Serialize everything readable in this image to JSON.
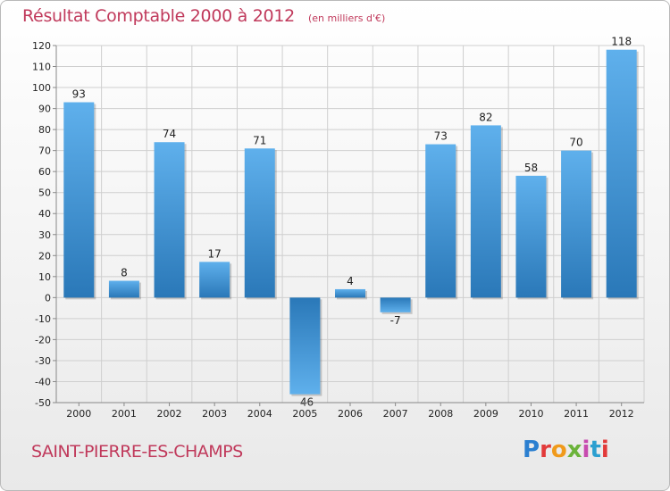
{
  "title": "Résultat Comptable 2000 à 2012",
  "unit": "(en milliers d'€)",
  "commune": "SAINT-PIERRE-ES-CHAMPS",
  "logo_letters": [
    "P",
    "r",
    "o",
    "x",
    "i",
    "t",
    "i"
  ],
  "colors": {
    "title": "#c0395b",
    "bar_dark": "#2a78b8",
    "bar_light": "#5fb0ec",
    "grid": "#cfcfcf",
    "axis_text": "#222222"
  },
  "chart_data": {
    "type": "bar",
    "categories": [
      "2000",
      "2001",
      "2002",
      "2003",
      "2004",
      "2005",
      "2006",
      "2007",
      "2008",
      "2009",
      "2010",
      "2011",
      "2012"
    ],
    "values": [
      93,
      8,
      74,
      17,
      71,
      -46,
      4,
      -7,
      73,
      82,
      58,
      70,
      118
    ],
    "value_labels": [
      "93",
      "8",
      "74",
      "17",
      "71",
      "-46",
      "4",
      "-7",
      "73",
      "82",
      "58",
      "70",
      "118"
    ],
    "y_ticks": [
      "120",
      "110",
      "100",
      "90",
      "80",
      "70",
      "60",
      "50",
      "40",
      "30",
      "20",
      "10",
      "0",
      "-10",
      "-20",
      "-30",
      "-40",
      "-50"
    ],
    "ylim": [
      -50,
      120
    ],
    "grid": true,
    "legend": "none",
    "title": "Résultat Comptable 2000 à 2012",
    "xlabel": "",
    "ylabel": ""
  }
}
